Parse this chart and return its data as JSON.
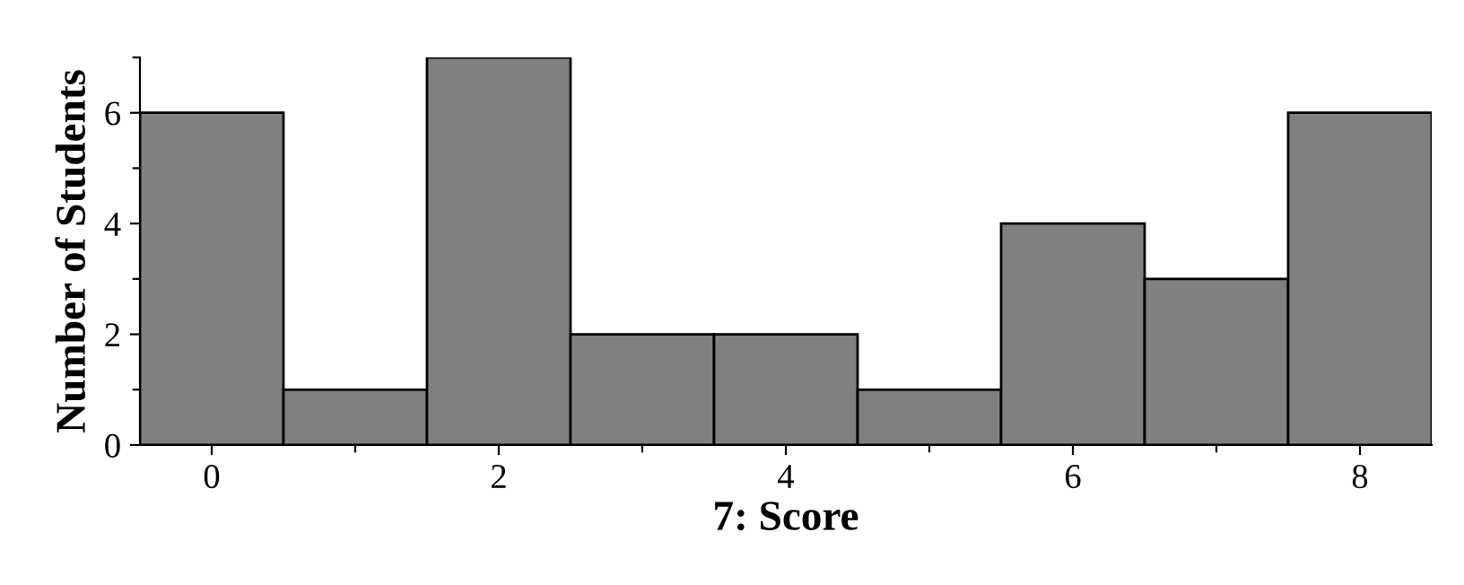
{
  "chart_data": {
    "type": "histogram",
    "xlabel": "7: Score",
    "ylabel": "Number of Students",
    "bins": [
      -0.5,
      0.5,
      1.5,
      2.5,
      3.5,
      4.5,
      5.5,
      6.5,
      7.5,
      8.5
    ],
    "values": [
      6,
      1,
      7,
      2,
      2,
      1,
      4,
      3,
      6
    ],
    "color": "#808080",
    "xlim": [
      -0.5,
      8.5
    ],
    "ylim": [
      0,
      7
    ],
    "xticks": [
      0,
      {
        "value": 1,
        "label": null
      },
      2,
      {
        "value": 3,
        "label": null
      },
      4,
      {
        "value": 5,
        "label": null
      },
      6,
      {
        "value": 7,
        "label": null
      },
      8
    ],
    "yticks": [
      0,
      {
        "value": 1,
        "label": null
      },
      2,
      {
        "value": 3,
        "label": null
      },
      4,
      {
        "value": 5,
        "label": null
      },
      6,
      {
        "value": 7,
        "label": null
      }
    ],
    "grid": false
  }
}
